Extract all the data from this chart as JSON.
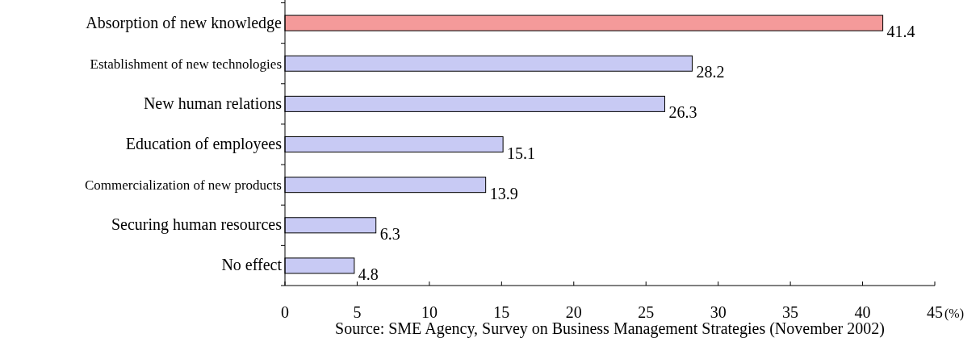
{
  "chart_data": {
    "type": "bar",
    "orientation": "horizontal",
    "categories": [
      "Absorption of new knowledge",
      "Establishment of new technologies",
      "New human relations",
      "Education of employees",
      "Commercialization of new products",
      "Securing human resources",
      "No effect"
    ],
    "values": [
      41.4,
      28.2,
      26.3,
      15.1,
      13.9,
      6.3,
      4.8
    ],
    "colors": [
      "#f49a9a",
      "#c8caf4",
      "#c8caf4",
      "#c8caf4",
      "#c8caf4",
      "#c8caf4",
      "#c8caf4"
    ],
    "xlim": [
      0,
      45
    ],
    "xticks": [
      0,
      5,
      10,
      15,
      20,
      25,
      30,
      35,
      40,
      45
    ],
    "xlabel": "(%)",
    "data_labels": true,
    "annotations": [
      "Source: SME Agency, Survey on Business Management Strategies (November 2002)"
    ]
  }
}
